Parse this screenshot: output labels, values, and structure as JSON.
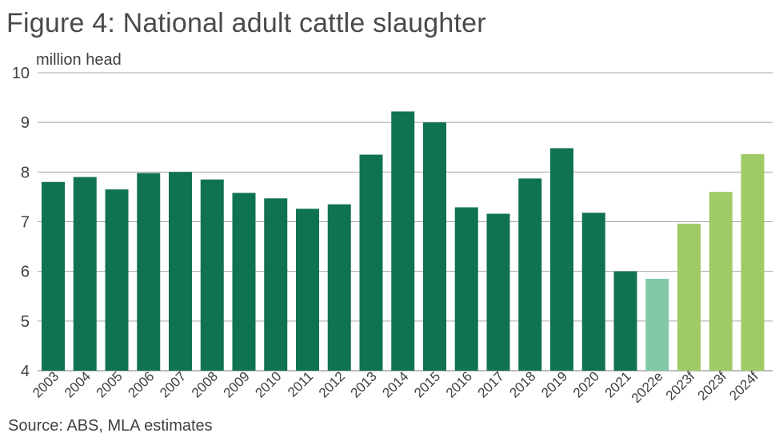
{
  "title": "Figure 4: National adult cattle slaughter",
  "source": "Source: ABS, MLA estimates",
  "chart_data": {
    "type": "bar",
    "title": "Figure 4: National adult cattle slaughter",
    "ylabel": "million head",
    "xlabel": "",
    "ylim": [
      4,
      10
    ],
    "yticks": [
      4,
      5,
      6,
      7,
      8,
      9,
      10
    ],
    "grid": true,
    "categories": [
      "2003",
      "2004",
      "2005",
      "2006",
      "2007",
      "2008",
      "2009",
      "2010",
      "2011",
      "2012",
      "2013",
      "2014",
      "2015",
      "2016",
      "2017",
      "2018",
      "2019",
      "2020",
      "2021",
      "2022e",
      "2023f",
      "2023f",
      "2024f"
    ],
    "values": [
      7.8,
      7.9,
      7.65,
      7.98,
      8.0,
      7.85,
      7.58,
      7.47,
      7.26,
      7.35,
      8.35,
      9.22,
      9.0,
      7.29,
      7.16,
      7.87,
      8.48,
      7.18,
      6.0,
      5.85,
      6.96,
      7.6,
      8.36
    ],
    "bar_colors": [
      "#10734f",
      "#10734f",
      "#10734f",
      "#10734f",
      "#10734f",
      "#10734f",
      "#10734f",
      "#10734f",
      "#10734f",
      "#10734f",
      "#10734f",
      "#10734f",
      "#10734f",
      "#10734f",
      "#10734f",
      "#10734f",
      "#10734f",
      "#10734f",
      "#10734f",
      "#83c9a9",
      "#9fcb67",
      "#9fcb67",
      "#9fcb67"
    ],
    "colors": {
      "actual": "#10734f",
      "estimate": "#83c9a9",
      "forecast": "#9fcb67",
      "gridline": "#a6a6a6"
    }
  }
}
